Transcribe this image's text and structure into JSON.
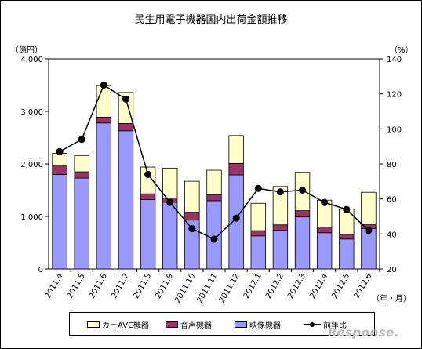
{
  "chart_data": {
    "type": "bar",
    "title": "民生用電子機器国内出荷金額推移",
    "left_unit": "（億円）",
    "right_unit": "（%）",
    "x_unit": "（年・月）",
    "categories": [
      "2011.4",
      "2011.5",
      "2011.6",
      "2011.7",
      "2011.8",
      "2011.9",
      "2011.10",
      "2011.11",
      "2011.12",
      "2012.1",
      "2012.2",
      "2012.3",
      "2012.4",
      "2012.5",
      "2012.6"
    ],
    "stacked_series": [
      {
        "name": "映像機器",
        "color": "#9999ff",
        "values": [
          1800,
          1730,
          2780,
          2630,
          1320,
          1270,
          930,
          1300,
          1790,
          630,
          740,
          990,
          690,
          570,
          770
        ]
      },
      {
        "name": "音声機器",
        "color": "#993366",
        "values": [
          160,
          120,
          110,
          140,
          110,
          80,
          150,
          110,
          220,
          100,
          100,
          120,
          110,
          90,
          80
        ]
      },
      {
        "name": "カーAVC機器",
        "color": "#ffffcc",
        "values": [
          240,
          310,
          600,
          590,
          510,
          570,
          590,
          470,
          530,
          520,
          730,
          730,
          510,
          480,
          610
        ]
      }
    ],
    "line_series": {
      "name": "前年比",
      "color": "#000000",
      "values": [
        87,
        94,
        125,
        117,
        74,
        58,
        43,
        37,
        49,
        66,
        64,
        65,
        58,
        54,
        42
      ]
    },
    "ylim_left": [
      0,
      4000
    ],
    "yticks_left": [
      "0",
      "1,000",
      "2,000",
      "3,000",
      "4,000"
    ],
    "ylim_right": [
      20,
      140
    ],
    "yticks_right": [
      "20",
      "40",
      "60",
      "80",
      "100",
      "120",
      "140"
    ],
    "legend_position": "bottom",
    "grid": false
  },
  "legend": {
    "car": "カーAVC機器",
    "audio": "音声機器",
    "video": "映像機器",
    "yoy": "前年比"
  },
  "watermark": "Response."
}
